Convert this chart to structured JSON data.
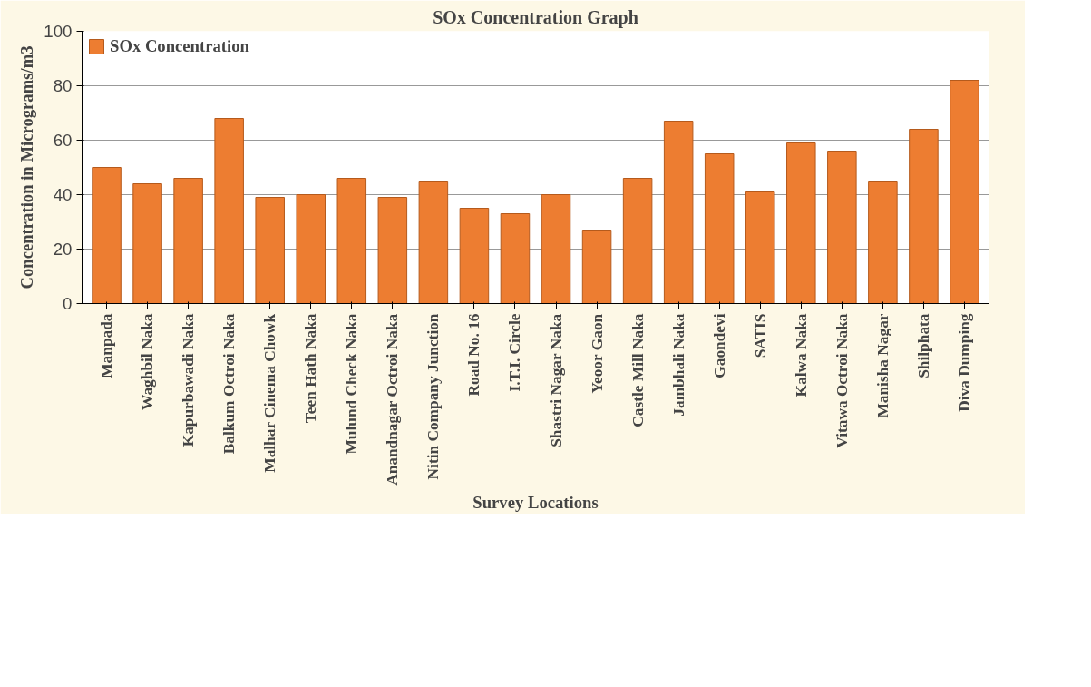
{
  "chart_data": {
    "type": "bar",
    "title": "SOx Concentration Graph",
    "xlabel": "Survey Locations",
    "ylabel": "Concentration in Micrograms/m3",
    "categories": [
      "Manpada",
      "Waghbil Naka",
      "Kapurbawadi Naka",
      "Balkum Octroi Naka",
      "Malhar Cinema Chowk",
      "Teen Hath Naka",
      "Mulund Check Naka",
      "Anandnagar Octroi Naka",
      "Nitin Company Junction",
      "Road No. 16",
      "I.T.I. Circle",
      "Shastri Nagar Naka",
      "Yeoor Gaon",
      "Castle Mill Naka",
      "Jambhali Naka",
      "Gaondevi",
      "SATIS",
      "Kalwa Naka",
      "Vitawa Octroi Naka",
      "Manisha Nagar",
      "Shilphata",
      "Diva Dumping"
    ],
    "series": [
      {
        "name": "SOx Concentration",
        "color": "#ed7d31",
        "values": [
          50,
          44,
          46,
          68,
          39,
          40,
          46,
          39,
          45,
          35,
          33,
          40,
          27,
          46,
          67,
          55,
          41,
          59,
          56,
          45,
          64,
          82
        ]
      }
    ],
    "ylim": [
      0,
      100
    ],
    "yticks": [
      0,
      20,
      40,
      60,
      80,
      100
    ],
    "grid": "y",
    "legend": "top left"
  }
}
